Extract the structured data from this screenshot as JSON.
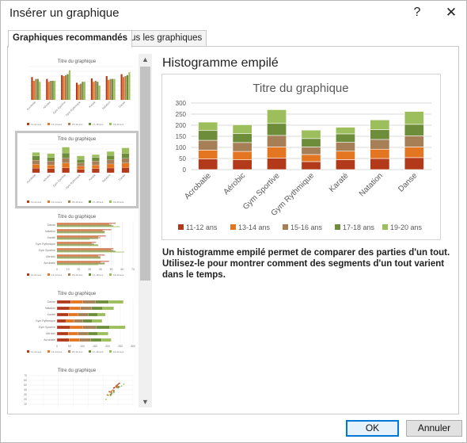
{
  "window": {
    "title": "Insérer un graphique",
    "help_label": "?",
    "close_label": "✕"
  },
  "tabs": [
    {
      "label": "Graphiques recommandés",
      "active": true
    },
    {
      "label": "Tous les graphiques",
      "active": false
    }
  ],
  "thumbnails": [
    {
      "title": "Titre du graphique",
      "kind": "clustered-column"
    },
    {
      "title": "Titre du graphique",
      "kind": "stacked-column",
      "selected": true
    },
    {
      "title": "Titre du graphique",
      "kind": "clustered-bar",
      "axis_ticks": [
        "0",
        "10",
        "20",
        "30",
        "40",
        "50",
        "60",
        "70"
      ]
    },
    {
      "title": "Titre du graphique",
      "kind": "stacked-bar",
      "axis_ticks": [
        "0",
        "50",
        "100",
        "150",
        "200",
        "250",
        "300"
      ]
    },
    {
      "title": "Titre du graphique",
      "kind": "scatter",
      "axis_ticks": [
        "0",
        "10",
        "20",
        "30",
        "40",
        "50",
        "60",
        "70"
      ]
    }
  ],
  "preview": {
    "heading": "Histogramme empilé",
    "description": "Un histogramme empilé permet de comparer des parties d'un tout. Utilisez-le pour montrer comment des segments d'un tout varient dans le temps."
  },
  "chart_data": {
    "type": "bar",
    "stacked": true,
    "title": "Titre du graphique",
    "categories": [
      "Acrobatie",
      "Aérobic",
      "Gym Sportive",
      "Gym Rythmique",
      "Karaté",
      "Natation",
      "Danse"
    ],
    "ylim": [
      0,
      300
    ],
    "yticks": [
      0,
      50,
      100,
      150,
      200,
      250,
      300
    ],
    "grid": true,
    "legend_position": "bottom",
    "series": [
      {
        "name": "11-12 ans",
        "color": "#b23a1b",
        "values": [
          48,
          44,
          52,
          36,
          45,
          50,
          54
        ]
      },
      {
        "name": "13-14 ans",
        "color": "#e47622",
        "values": [
          40,
          38,
          50,
          32,
          38,
          42,
          48
        ]
      },
      {
        "name": "15-16 ans",
        "color": "#a67f56",
        "values": [
          44,
          40,
          52,
          34,
          40,
          44,
          50
        ]
      },
      {
        "name": "17-18 ans",
        "color": "#6d8d3b",
        "values": [
          44,
          40,
          54,
          38,
          38,
          44,
          52
        ]
      },
      {
        "name": "19-20 ans",
        "color": "#9cbe5c",
        "values": [
          38,
          40,
          62,
          38,
          30,
          44,
          58
        ]
      }
    ]
  },
  "buttons": {
    "ok_label": "OK",
    "cancel_label": "Annuler"
  },
  "icons": {
    "scroll_up": "▲",
    "scroll_down": "▼"
  }
}
